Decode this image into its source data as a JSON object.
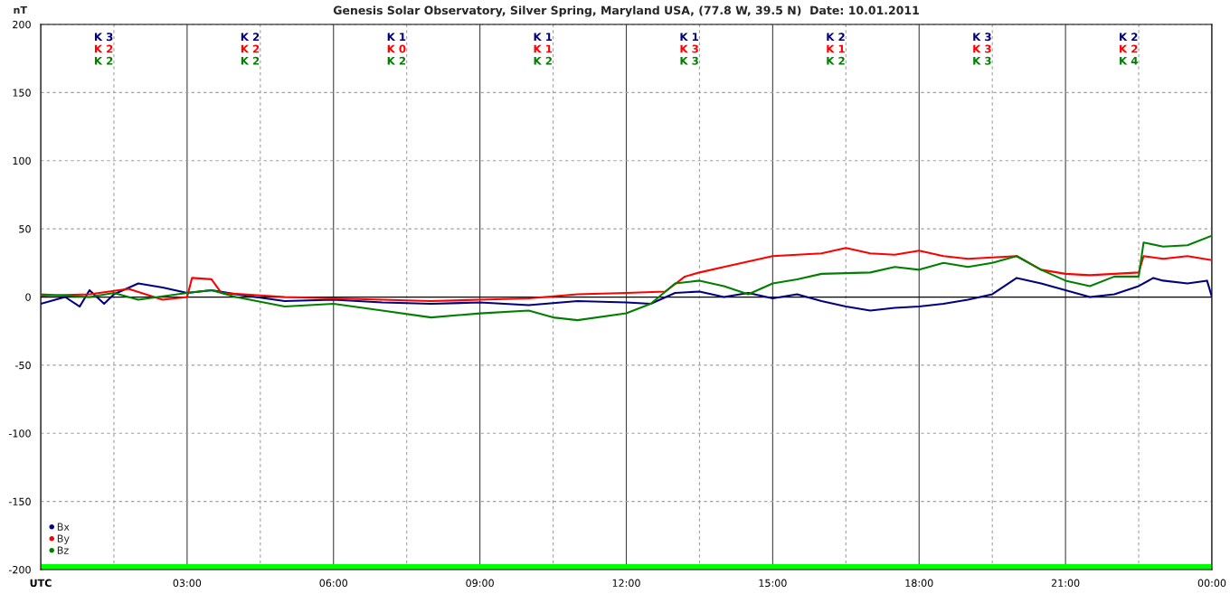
{
  "chart_data": {
    "type": "line",
    "title": "Genesis Solar Observatory, Silver Spring, Maryland USA, (77.8 W, 39.5 N)  Date: 10.01.2011",
    "ylabel": "nT",
    "xlim": [
      0,
      24
    ],
    "ylim": [
      -200,
      200
    ],
    "xticks": [
      {
        "value": 0,
        "label": "UTC"
      },
      {
        "value": 1.5,
        "label": null
      },
      {
        "value": 3,
        "label": "03:00"
      },
      {
        "value": 4.5,
        "label": null
      },
      {
        "value": 6,
        "label": "06:00"
      },
      {
        "value": 7.5,
        "label": null
      },
      {
        "value": 9,
        "label": "09:00"
      },
      {
        "value": 10.5,
        "label": null
      },
      {
        "value": 12,
        "label": "12:00"
      },
      {
        "value": 13.5,
        "label": null
      },
      {
        "value": 15,
        "label": "15:00"
      },
      {
        "value": 16.5,
        "label": null
      },
      {
        "value": 18,
        "label": "18:00"
      },
      {
        "value": 19.5,
        "label": null
      },
      {
        "value": 21,
        "label": "21:00"
      },
      {
        "value": 22.5,
        "label": null
      },
      {
        "value": 24,
        "label": "00:00"
      }
    ],
    "yticks": [
      -200,
      -150,
      -100,
      -50,
      0,
      50,
      100,
      150,
      200
    ],
    "grid": true,
    "legend": "bottom left",
    "line_style": "solid",
    "ref_lines": [
      {
        "axis": "y",
        "value": 0,
        "label": null,
        "color": "#000000"
      }
    ],
    "bands": [
      {
        "axis": "y",
        "from": -200,
        "to": -196,
        "label": null,
        "color": "#00ff00"
      }
    ],
    "series": [
      {
        "name": "Bx",
        "color": "#000080",
        "x": [
          0,
          0.5,
          0.8,
          1,
          1.3,
          1.5,
          2,
          2.5,
          3,
          3.5,
          4,
          5,
          6,
          7,
          8,
          9,
          10,
          11,
          12,
          12.5,
          13,
          13.5,
          14,
          14.5,
          15,
          15.5,
          16,
          16.5,
          17,
          17.5,
          18,
          18.5,
          19,
          19.5,
          20,
          20.5,
          21,
          21.5,
          22,
          22.5,
          22.8,
          23,
          23.5,
          23.9,
          24
        ],
        "values": [
          -5,
          0,
          -7,
          5,
          -5,
          2,
          10,
          7,
          3,
          5,
          2,
          -3,
          -2,
          -4,
          -5,
          -4,
          -6,
          -3,
          -4,
          -5,
          3,
          4,
          0,
          3,
          -1,
          2,
          -3,
          -7,
          -10,
          -8,
          -7,
          -5,
          -2,
          2,
          14,
          10,
          5,
          0,
          2,
          8,
          14,
          12,
          10,
          12,
          0
        ]
      },
      {
        "name": "By",
        "color": "#ff0000",
        "x": [
          0,
          1,
          1.8,
          2.5,
          3,
          3.1,
          3.5,
          3.7,
          5,
          7,
          8,
          9,
          10,
          11,
          12,
          12.8,
          13.2,
          13.5,
          14,
          14.5,
          15,
          16,
          16.5,
          17,
          17.5,
          18,
          18.5,
          19,
          19.5,
          20,
          20.5,
          21,
          21.5,
          22,
          22.5,
          22.6,
          23,
          23.5,
          24
        ],
        "values": [
          1,
          2,
          6,
          -2,
          0,
          14,
          13,
          3,
          0,
          -2,
          -3,
          -2,
          -1,
          2,
          3,
          4,
          15,
          18,
          22,
          26,
          30,
          32,
          36,
          32,
          31,
          34,
          30,
          28,
          29,
          30,
          20,
          17,
          16,
          17,
          18,
          30,
          28,
          30,
          27
        ]
      },
      {
        "name": "Bz",
        "color": "#008000",
        "x": [
          0,
          1,
          1.5,
          2,
          3,
          3.5,
          4,
          5,
          6,
          7,
          8,
          9,
          10,
          10.5,
          11,
          12,
          12.5,
          13,
          13.5,
          14,
          14.5,
          15,
          15.5,
          16,
          17,
          17.5,
          18,
          18.5,
          19,
          19.5,
          20,
          20.5,
          21,
          21.5,
          22,
          22.5,
          22.6,
          23,
          23.5,
          24
        ],
        "values": [
          2,
          0,
          3,
          -2,
          3,
          5,
          0,
          -7,
          -5,
          -10,
          -15,
          -12,
          -10,
          -15,
          -17,
          -12,
          -5,
          10,
          12,
          8,
          2,
          10,
          13,
          17,
          18,
          22,
          20,
          25,
          22,
          25,
          30,
          20,
          12,
          8,
          15,
          15,
          40,
          37,
          38,
          45
        ]
      }
    ],
    "annotations": [
      "K 3",
      "K 2",
      "K 2",
      "K 2",
      "K 2",
      "K 2",
      "K 1",
      "K 0",
      "K 2",
      "K 1",
      "K 1",
      "K 2",
      "K 1",
      "K 3",
      "K 3",
      "K 2",
      "K 1",
      "K 2",
      "K 3",
      "K 3",
      "K 3",
      "K 2",
      "K 2",
      "K 4"
    ]
  }
}
